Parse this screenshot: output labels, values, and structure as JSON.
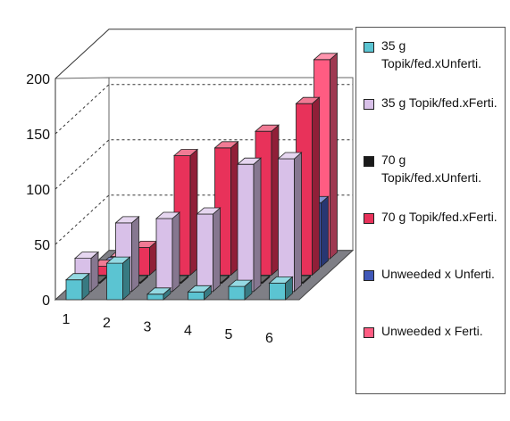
{
  "chart_data": {
    "type": "bar",
    "style": "3d-clustered-column",
    "categories": [
      "1",
      "2",
      "3",
      "4",
      "5",
      "6"
    ],
    "ylim": [
      0,
      200
    ],
    "yticks": [
      0,
      50,
      100,
      150,
      200
    ],
    "grid": true,
    "legend_position": "right",
    "series": [
      {
        "name": "35 g Topik/fed.xUnferti.",
        "color": "#5bc4d2",
        "values": [
          18,
          33,
          5,
          7,
          12,
          15
        ]
      },
      {
        "name": "35 g Topik/fed.xFerti.",
        "color": "#d8c0e8",
        "values": [
          30,
          62,
          66,
          70,
          115,
          120
        ]
      },
      {
        "name": "70 g Topik/fed.xUnferti.",
        "color": "#1a1a1a",
        "values": [
          0,
          0,
          0,
          0,
          0,
          0
        ]
      },
      {
        "name": "70 g Topik/fed.xFerti.",
        "color": "#e8325a",
        "values": [
          8,
          25,
          108,
          115,
          130,
          155
        ]
      },
      {
        "name": "Unweeded x Unferti.",
        "color": "#4058b8",
        "values": [
          3,
          5,
          6,
          5,
          10,
          58
        ]
      },
      {
        "name": "Unweeded x Ferti.",
        "color": "#ff5c82",
        "values": [
          2,
          2,
          3,
          4,
          5,
          180
        ]
      }
    ]
  }
}
